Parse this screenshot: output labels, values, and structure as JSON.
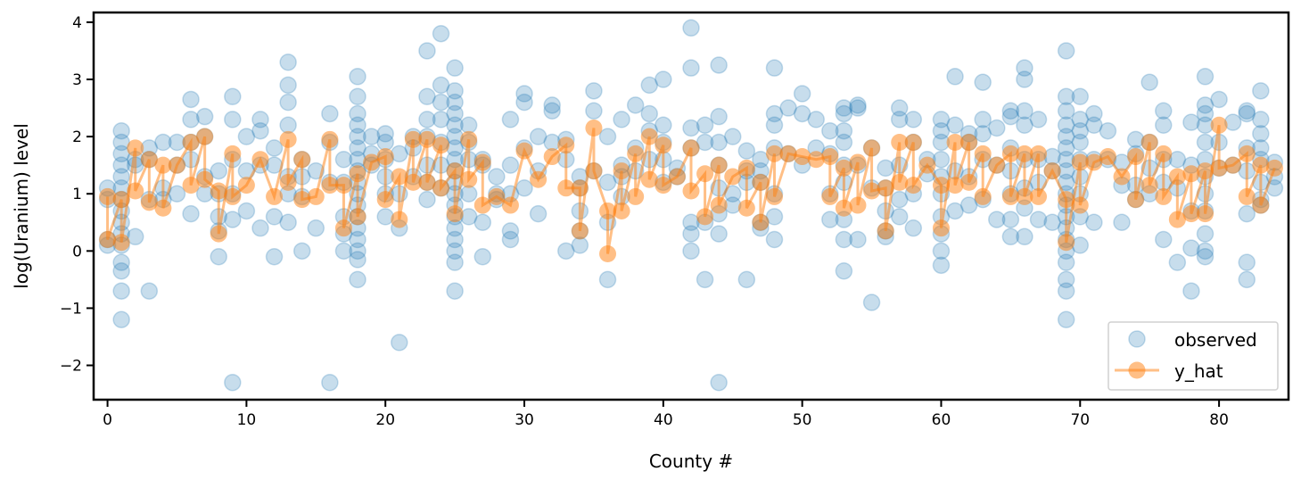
{
  "chart_data": {
    "type": "scatter",
    "title": "",
    "xlabel": "County #",
    "ylabel": "log(Uranium) level",
    "xlim": [
      -1,
      85
    ],
    "ylim": [
      -2.6,
      4.17
    ],
    "xticks": [
      0,
      10,
      20,
      30,
      40,
      50,
      60,
      70,
      80
    ],
    "yticks": [
      -2,
      -1,
      0,
      1,
      2,
      3,
      4
    ],
    "grid": false,
    "legend": {
      "placement": "lower-right",
      "entries": [
        "observed",
        "y_hat"
      ]
    },
    "colors": {
      "observed": "#1f77b4",
      "y_hat": "#ff7f0e"
    },
    "series": [
      {
        "name": "observed",
        "kind": "scatter",
        "points_by_county": [
          [
            1.1,
            0.9,
            0.2,
            0.1
          ],
          [
            2.1,
            1.9,
            1.7,
            1.5,
            1.3,
            1.1,
            0.9,
            0.7,
            0.5,
            0.3,
            0.1,
            -0.2,
            -0.35,
            -0.7,
            -1.2
          ],
          [
            1.6,
            1.5,
            0.25
          ],
          [
            1.8,
            1.6,
            0.9,
            -0.7
          ],
          [
            1.9,
            1.1,
            0.9
          ],
          [
            1.9,
            1.5,
            1.0
          ],
          [
            2.65,
            2.3,
            1.9,
            1.6,
            0.65
          ],
          [
            2.35,
            2.0,
            1.3,
            1.0
          ],
          [
            1.4,
            1.0,
            0.6,
            0.35,
            -0.1
          ],
          [
            2.7,
            2.3,
            1.6,
            1.0,
            0.55,
            -2.3
          ],
          [
            2.0,
            1.4,
            0.7
          ],
          [
            2.3,
            2.1,
            1.5,
            0.4
          ],
          [
            1.8,
            1.5,
            0.6,
            -0.1
          ],
          [
            3.3,
            2.9,
            2.6,
            2.2,
            1.3,
            1.0,
            0.5
          ],
          [
            1.6,
            1.3,
            0.95,
            0.0
          ],
          [
            1.4,
            0.4
          ],
          [
            2.4,
            1.9,
            1.2,
            -2.3
          ],
          [
            1.6,
            1.2,
            0.6,
            0.3,
            0.0
          ],
          [
            3.05,
            2.7,
            2.4,
            2.2,
            2.0,
            1.8,
            1.6,
            1.4,
            1.2,
            1.0,
            0.8,
            0.6,
            0.4,
            0.2,
            0.0,
            -0.15,
            -0.5
          ],
          [
            2.0,
            1.7,
            1.5
          ],
          [
            2.05,
            1.9,
            1.6,
            1.3,
            1.0,
            0.6
          ],
          [
            1.7,
            1.0,
            0.4,
            -1.6
          ],
          [
            2.0,
            1.8,
            1.3
          ],
          [
            3.5,
            2.7,
            2.3,
            2.0,
            1.5,
            1.2,
            0.9
          ],
          [
            3.8,
            2.9,
            2.6,
            2.3,
            1.9,
            1.5,
            1.1
          ],
          [
            3.2,
            2.8,
            2.6,
            2.4,
            2.2,
            2.0,
            1.8,
            1.6,
            1.4,
            1.2,
            1.0,
            0.8,
            0.6,
            0.4,
            0.2,
            0.0,
            -0.2,
            -0.7
          ],
          [
            2.2,
            1.9,
            1.6,
            1.0,
            0.6
          ],
          [
            1.6,
            1.5,
            0.5,
            -0.1
          ],
          [
            1.3,
            1.0,
            0.9
          ],
          [
            2.3,
            1.5,
            1.0,
            0.35,
            0.2
          ],
          [
            2.75,
            2.6,
            1.8,
            1.1
          ],
          [
            2.0,
            1.4,
            0.65
          ],
          [
            2.55,
            2.45,
            1.9
          ],
          [
            1.95,
            1.6,
            0.0
          ],
          [
            1.3,
            1.1,
            0.7,
            0.35,
            0.1
          ],
          [
            2.8,
            2.45,
            1.4
          ],
          [
            2.0,
            1.2,
            0.5,
            -0.5
          ],
          [
            2.3,
            1.5,
            1.3,
            0.95
          ],
          [
            2.55,
            1.8,
            1.4
          ],
          [
            2.9,
            2.4,
            2.1,
            1.6
          ],
          [
            3.0,
            2.2,
            1.9,
            1.6,
            1.2
          ],
          [
            1.45,
            1.3
          ],
          [
            3.9,
            3.2,
            2.15,
            1.8,
            0.5,
            0.3,
            0.0
          ],
          [
            2.2,
            1.9,
            0.5,
            -0.5
          ],
          [
            3.25,
            2.35,
            1.9,
            1.5,
            1.1,
            0.65,
            0.3,
            -2.3
          ],
          [
            2.0,
            1.0,
            0.8
          ],
          [
            1.75,
            1.4,
            1.2,
            -0.5
          ],
          [
            1.6,
            1.4,
            1.2,
            0.5,
            0.4
          ],
          [
            3.2,
            2.4,
            2.2,
            1.8,
            1.0,
            0.6,
            0.2
          ],
          [
            2.5,
            1.7
          ],
          [
            2.75,
            2.4,
            1.5
          ],
          [
            2.3,
            1.8
          ],
          [
            2.1,
            1.7,
            1.0,
            0.55
          ],
          [
            2.5,
            2.4,
            2.1,
            1.9,
            1.5,
            1.2,
            0.55,
            0.2,
            -0.35
          ],
          [
            2.55,
            2.5,
            1.5,
            0.2
          ],
          [
            1.8,
            1.1,
            -0.9
          ],
          [
            1.45,
            1.1,
            0.7,
            0.35,
            0.25
          ],
          [
            2.5,
            2.3,
            1.5,
            0.9,
            0.6
          ],
          [
            2.3,
            1.9,
            1.0,
            0.4
          ],
          [
            1.6,
            1.35
          ],
          [
            2.3,
            2.1,
            1.9,
            1.6,
            1.3,
            1.0,
            0.6,
            0.3,
            0.0,
            -0.25
          ],
          [
            3.05,
            2.2,
            1.4,
            0.7
          ],
          [
            2.05,
            1.9,
            1.3,
            0.8
          ],
          [
            2.95,
            2.3,
            2.05,
            1.6,
            0.9
          ],
          [
            2.15,
            1.5,
            0.55
          ],
          [
            2.45,
            2.35,
            1.8,
            1.4,
            1.0,
            0.55,
            0.25
          ],
          [
            3.2,
            3.0,
            2.45,
            2.2,
            1.6,
            1.1,
            0.75,
            0.25
          ],
          [
            2.3,
            1.6,
            1.2,
            0.55
          ],
          [
            1.65,
            1.4,
            0.5
          ],
          [
            3.5,
            2.7,
            2.45,
            2.2,
            2.0,
            1.8,
            1.6,
            1.4,
            1.2,
            1.0,
            0.8,
            0.6,
            0.4,
            0.2,
            0.0,
            -0.2,
            -0.5,
            -0.7,
            -1.2
          ],
          [
            2.7,
            2.3,
            2.1,
            1.9,
            1.6,
            1.3,
            1.0,
            0.6,
            0.1
          ],
          [
            2.4,
            2.2,
            1.6,
            0.5
          ],
          [
            2.1,
            1.6
          ],
          [
            1.55,
            1.15,
            0.5
          ],
          [
            1.95,
            1.7,
            1.15,
            0.9
          ],
          [
            2.95,
            1.9,
            1.45,
            1.0
          ],
          [
            2.45,
            2.2,
            1.6,
            1.2,
            0.2
          ],
          [
            1.6,
            1.1,
            -0.2
          ],
          [
            2.25,
            1.5,
            0.7,
            0.05,
            -0.7
          ],
          [
            3.05,
            2.55,
            2.4,
            2.2,
            1.9,
            1.6,
            1.3,
            1.0,
            0.7,
            0.3,
            0.0,
            -0.1
          ],
          [
            2.65,
            1.9,
            1.45
          ],
          [
            2.25,
            1.5
          ],
          [
            2.45,
            2.4,
            1.8,
            1.4,
            0.65,
            -0.2,
            -0.5
          ],
          [
            2.8,
            2.3,
            2.05,
            1.8,
            1.6,
            1.2,
            0.9,
            0.8
          ],
          [
            1.55,
            1.3,
            1.1
          ]
        ]
      },
      {
        "name": "y_hat",
        "kind": "line-markers",
        "values_by_county": [
          [
            0.95,
            0.2
          ],
          [
            0.9,
            0.15
          ],
          [
            1.8,
            1.05
          ],
          [
            1.6,
            0.85
          ],
          [
            1.5,
            0.75
          ],
          [
            1.5
          ],
          [
            1.9,
            1.15
          ],
          [
            2.0,
            1.25
          ],
          [
            1.05,
            0.3
          ],
          [
            1.7,
            0.95
          ],
          [
            1.15
          ],
          [
            1.6
          ],
          [
            0.95
          ],
          [
            1.95,
            1.2
          ],
          [
            1.6,
            0.9
          ],
          [
            0.95
          ],
          [
            1.95,
            1.15
          ],
          [
            1.15,
            0.4
          ],
          [
            1.35,
            0.6
          ],
          [
            1.55
          ],
          [
            1.65,
            0.9
          ],
          [
            1.3,
            0.55
          ],
          [
            1.95,
            1.2
          ],
          [
            1.95,
            1.2
          ],
          [
            1.85,
            1.1
          ],
          [
            1.4,
            0.65
          ],
          [
            1.95,
            1.25
          ],
          [
            1.55,
            0.8
          ],
          [
            0.95
          ],
          [
            0.8
          ],
          [
            1.75
          ],
          [
            1.25
          ],
          [
            1.65
          ],
          [
            1.85,
            1.1
          ],
          [
            1.1,
            0.35
          ],
          [
            2.15,
            1.4
          ],
          [
            0.7,
            -0.05
          ],
          [
            1.4,
            0.7
          ],
          [
            1.7,
            0.95
          ],
          [
            2.0,
            1.25
          ],
          [
            1.85,
            1.15
          ],
          [
            1.3
          ],
          [
            1.8,
            1.05
          ],
          [
            1.35,
            0.6
          ],
          [
            1.5,
            0.8
          ],
          [
            1.3
          ],
          [
            1.45,
            0.75
          ],
          [
            1.2,
            0.5
          ],
          [
            1.7,
            0.95
          ],
          [
            1.7
          ],
          [
            1.65
          ],
          [
            1.6
          ],
          [
            1.65,
            0.95
          ],
          [
            1.45,
            0.75
          ],
          [
            1.55,
            0.8
          ],
          [
            1.8,
            1.05
          ],
          [
            1.1,
            0.35
          ],
          [
            1.9,
            1.2
          ],
          [
            1.9,
            1.15
          ],
          [
            1.5
          ],
          [
            1.15,
            0.4
          ],
          [
            1.9,
            1.15
          ],
          [
            1.9,
            1.2
          ],
          [
            1.7,
            0.95
          ],
          [
            1.5
          ],
          [
            1.7,
            0.95
          ],
          [
            1.7,
            0.95
          ],
          [
            1.7,
            0.95
          ],
          [
            1.4
          ],
          [
            0.9,
            0.15
          ],
          [
            1.55,
            0.8
          ],
          [
            1.55
          ],
          [
            1.65
          ],
          [
            1.3
          ],
          [
            1.65,
            0.9
          ],
          [
            1.9,
            1.15
          ],
          [
            1.7,
            0.95
          ],
          [
            1.3,
            0.55
          ],
          [
            1.35,
            0.65
          ],
          [
            1.4,
            0.65
          ],
          [
            2.2,
            1.45
          ],
          [
            1.5
          ],
          [
            1.7,
            0.95
          ],
          [
            1.5,
            0.8
          ],
          [
            1.45
          ]
        ]
      }
    ]
  }
}
